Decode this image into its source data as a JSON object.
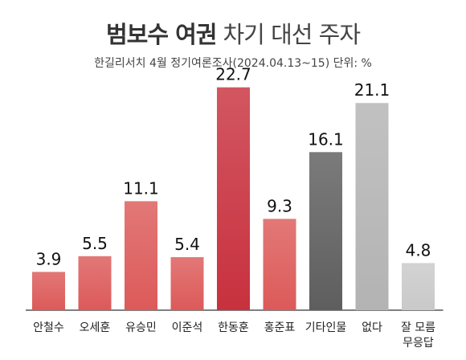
{
  "header": {
    "title_bold": "범보수 여권",
    "title_light": "차기 대선 주자",
    "subtitle": "한길리서치 4월 정기여론조사(2024.04.13~15) 단위: %"
  },
  "chart_data": {
    "type": "bar",
    "title": "범보수 여권 차기 대선 주자",
    "subtitle": "한길리서치 4월 정기여론조사(2024.04.13~15) 단위: %",
    "categories": [
      "안철수",
      "오세훈",
      "유승민",
      "이준석",
      "한동훈",
      "홍준표",
      "기타인물",
      "없다",
      "잘 모름\n무응답"
    ],
    "values": [
      3.9,
      5.5,
      11.1,
      5.4,
      22.7,
      9.3,
      16.1,
      21.1,
      4.8
    ],
    "value_labels": [
      "3.9",
      "5.5",
      "11.1",
      "5.4",
      "22.7",
      "9.3",
      "16.1",
      "21.1",
      "4.8"
    ],
    "bar_colors": [
      "#dc5a59",
      "#dc5a59",
      "#dc5a59",
      "#dc5a59",
      "#c8313e",
      "#dc5a59",
      "#5e5e5e",
      "#b3b3b3",
      "#c9c9c9"
    ],
    "ylim": [
      0,
      23
    ],
    "grid": false,
    "legend": "none"
  }
}
